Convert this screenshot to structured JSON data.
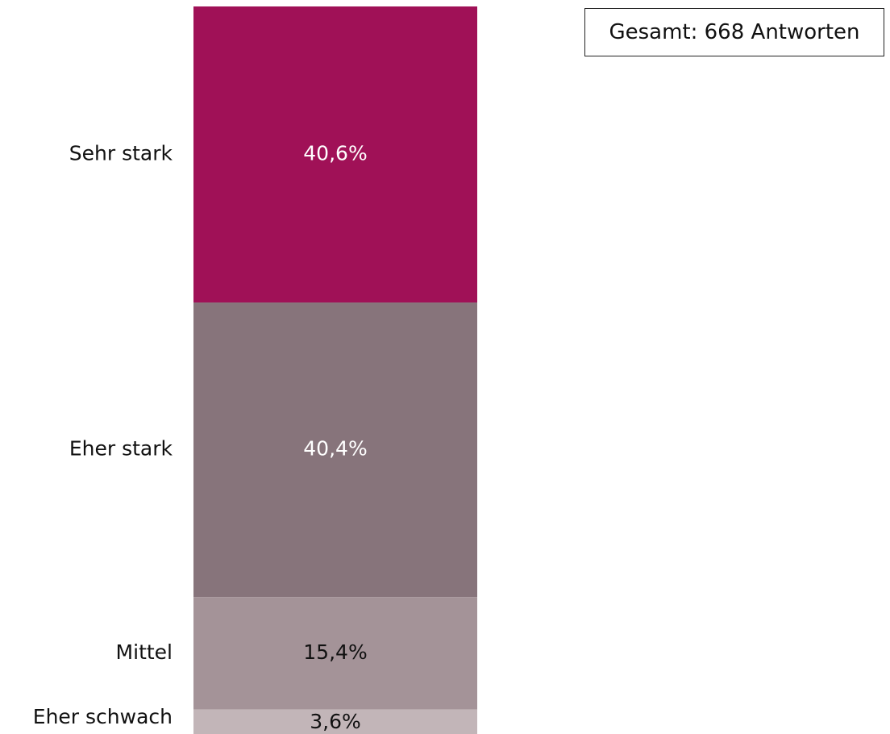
{
  "total_label": "Gesamt: 668 Antworten",
  "chart_data": {
    "type": "bar",
    "stacked": true,
    "orientation": "vertical",
    "categories": [
      "Sehr stark",
      "Eher stark",
      "Mittel",
      "Eher schwach"
    ],
    "values": [
      40.6,
      40.4,
      15.4,
      3.6
    ],
    "labels": [
      "40,6%",
      "40,4%",
      "15,4%",
      "3,6%"
    ],
    "colors": [
      "#A01157",
      "#87747B",
      "#A49398",
      "#C2B5B8"
    ],
    "label_colors": [
      "#ffffff",
      "#ffffff",
      "#111111",
      "#111111"
    ],
    "unit": "%",
    "grid": false,
    "legend": "none"
  }
}
